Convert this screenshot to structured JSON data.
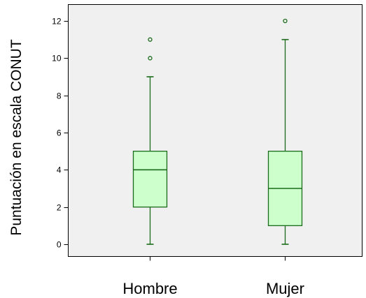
{
  "colors": {
    "box_fill": "#ccffcc",
    "box_stroke": "#1a6b1a",
    "plot_background": "#f0f0f0",
    "axis": "#000000"
  },
  "chart_data": {
    "type": "boxplot",
    "title": "",
    "xlabel": "",
    "ylabel": "Puntuación en escala CONUT",
    "ylim": [
      -0.6,
      12.7
    ],
    "yticks": [
      0,
      2,
      4,
      6,
      8,
      10,
      12
    ],
    "grid": false,
    "legend": "none",
    "categories": [
      "Hombre",
      "Mujer"
    ],
    "boxes": [
      {
        "category": "Hombre",
        "whisker_low": 0,
        "q1": 2,
        "median": 4,
        "q3": 5,
        "whisker_high": 9,
        "outliers": [
          10,
          11
        ]
      },
      {
        "category": "Mujer",
        "whisker_low": 0,
        "q1": 1,
        "median": 3,
        "q3": 5,
        "whisker_high": 11,
        "outliers": [
          12
        ]
      }
    ]
  }
}
